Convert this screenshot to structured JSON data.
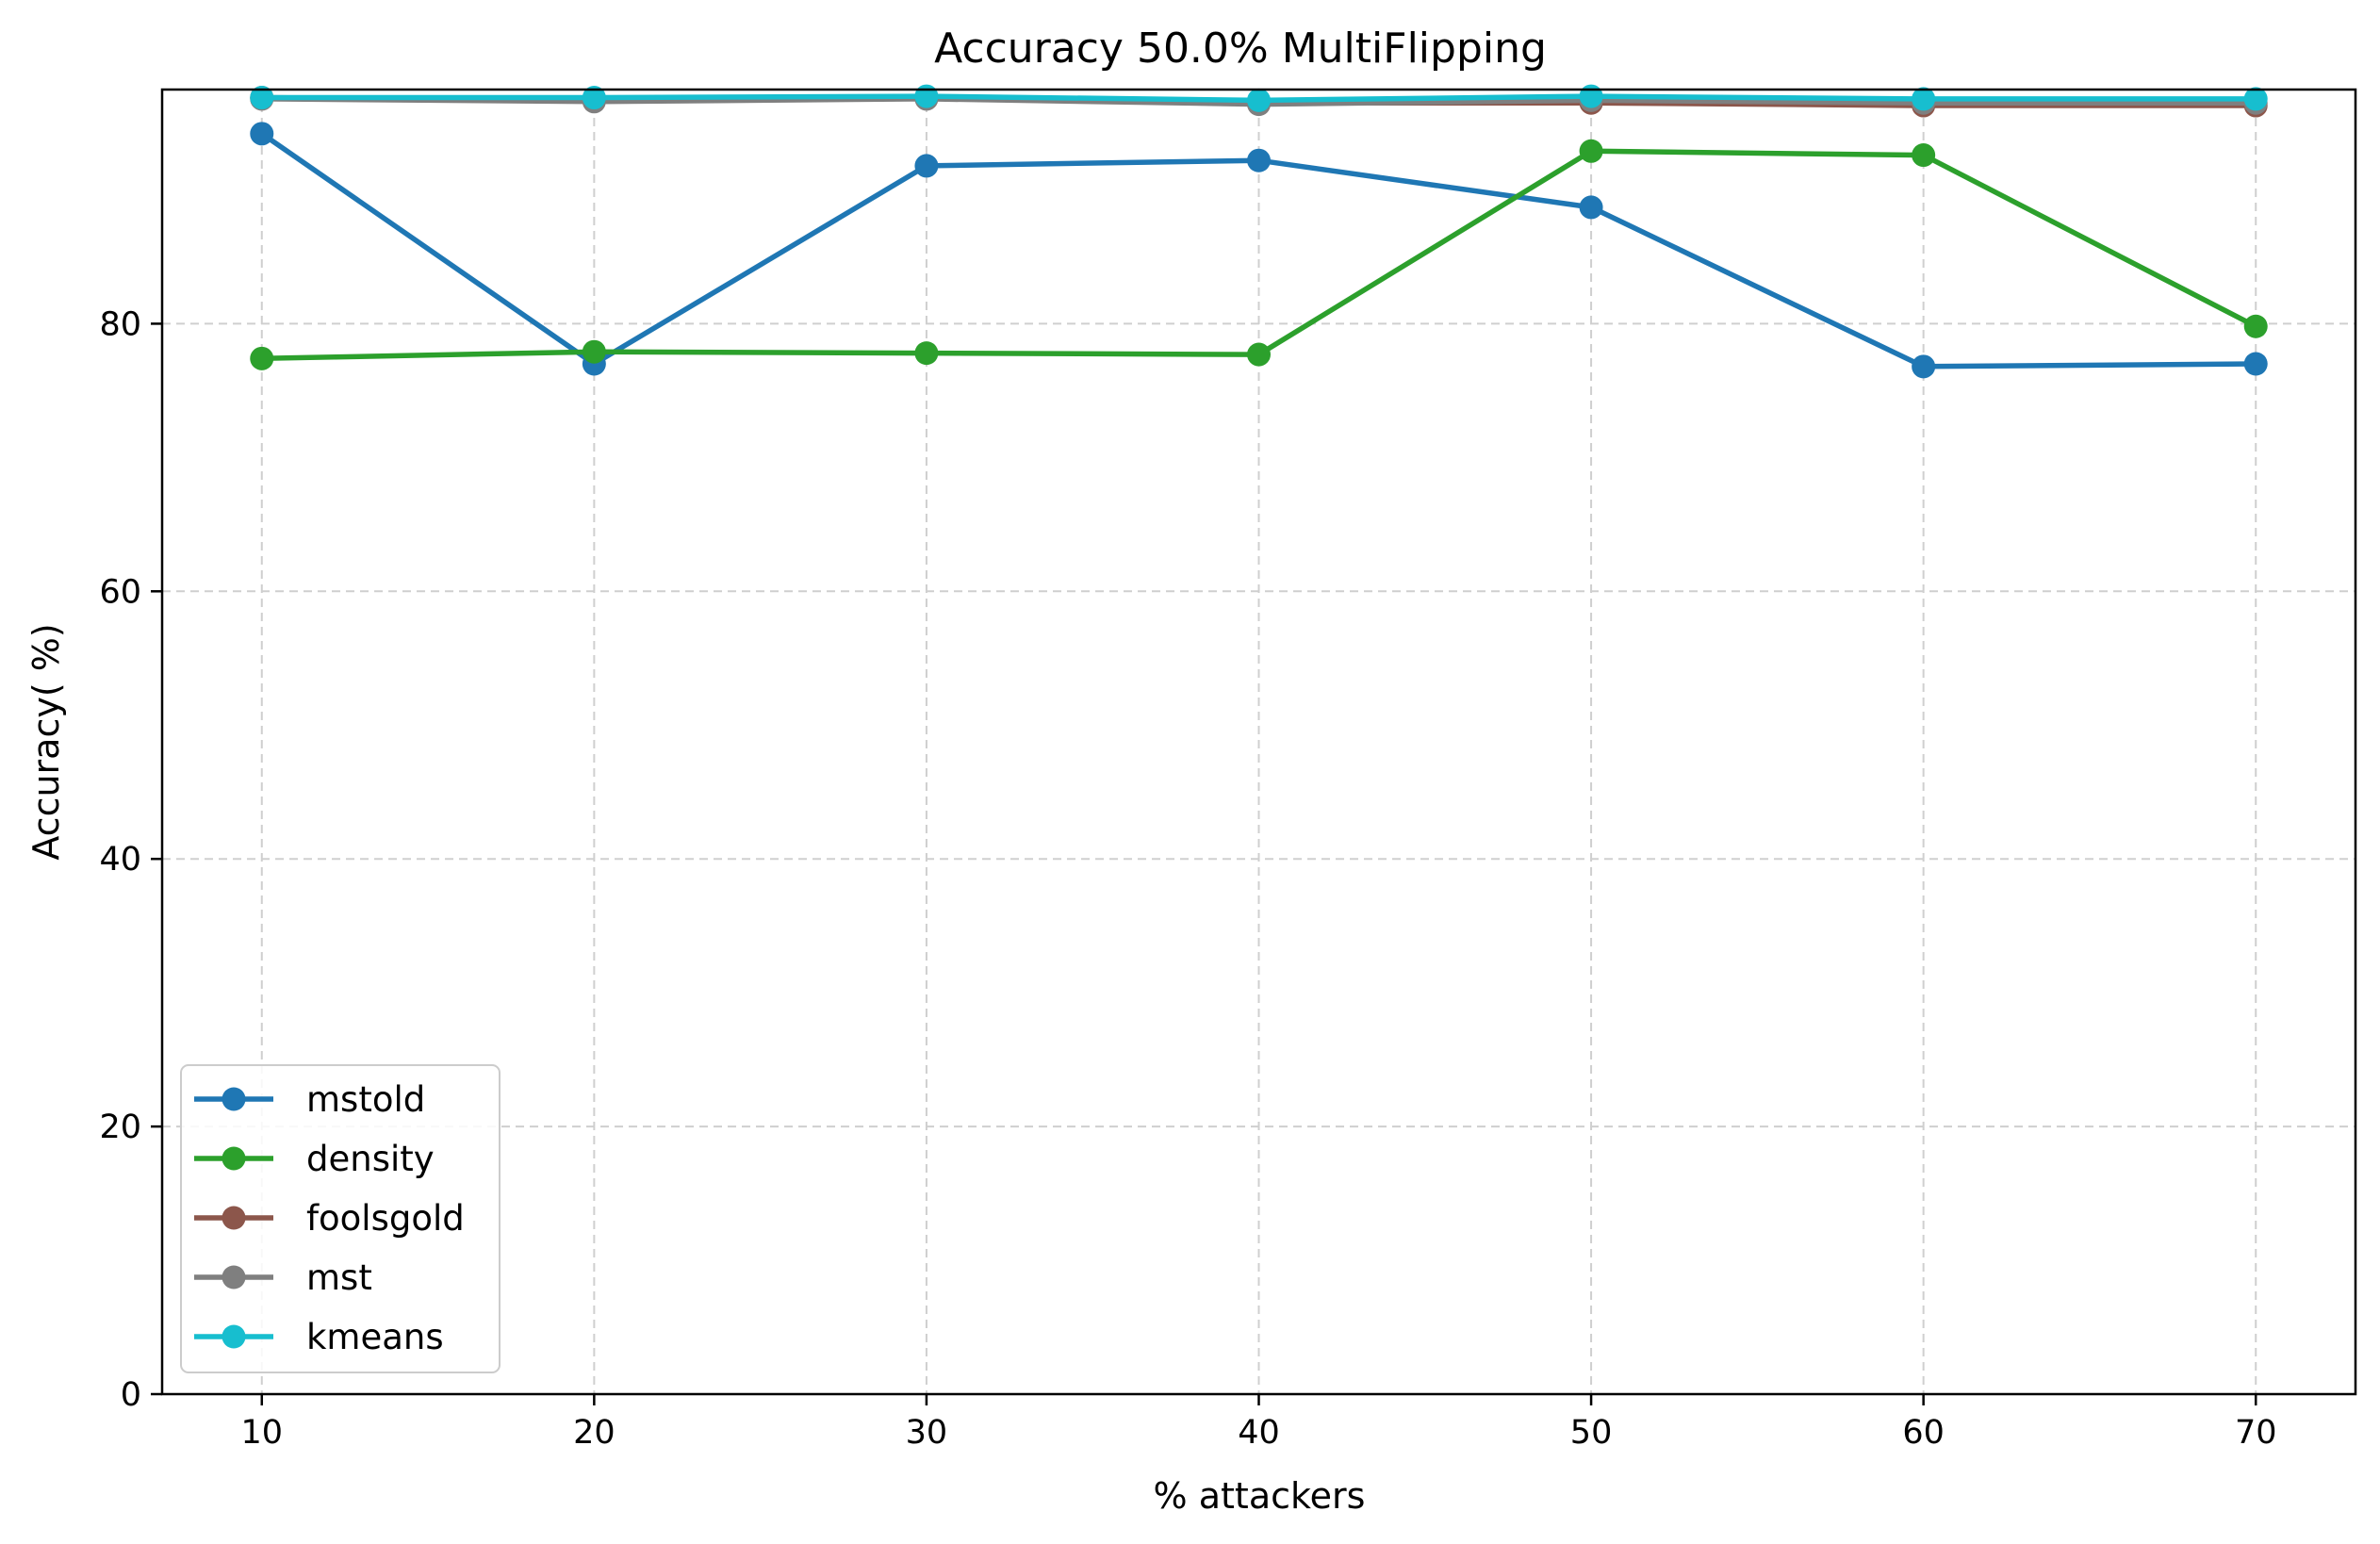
{
  "chart_data": {
    "type": "line",
    "title": "Accuracy 50.0% MultiFlipping",
    "xlabel": "% attackers",
    "ylabel": "Accuracy( %)",
    "x": [
      10,
      20,
      30,
      40,
      50,
      60,
      70
    ],
    "xticks": [
      10,
      20,
      30,
      40,
      50,
      60,
      70
    ],
    "yticks": [
      0,
      20,
      40,
      60,
      80
    ],
    "xlim": [
      7,
      73
    ],
    "ylim": [
      0,
      97.5
    ],
    "grid": true,
    "legend_position": "lower-left",
    "series": [
      {
        "name": "mstold",
        "color": "#1f77b4",
        "values": [
          94.2,
          77.0,
          91.8,
          92.2,
          88.7,
          76.8,
          77.0
        ]
      },
      {
        "name": "density",
        "color": "#2ca02c",
        "values": [
          77.4,
          77.9,
          77.8,
          77.7,
          92.9,
          92.6,
          79.8
        ]
      },
      {
        "name": "foolsgold",
        "color": "#8c564b",
        "values": [
          96.9,
          96.7,
          96.9,
          96.5,
          96.5,
          96.3,
          96.3
        ]
      },
      {
        "name": "mst",
        "color": "#7f7f7f",
        "values": [
          96.8,
          96.6,
          96.8,
          96.4,
          96.7,
          96.5,
          96.5
        ]
      },
      {
        "name": "kmeans",
        "color": "#17becf",
        "values": [
          96.9,
          96.9,
          97.0,
          96.7,
          97.0,
          96.8,
          96.8
        ]
      }
    ]
  }
}
